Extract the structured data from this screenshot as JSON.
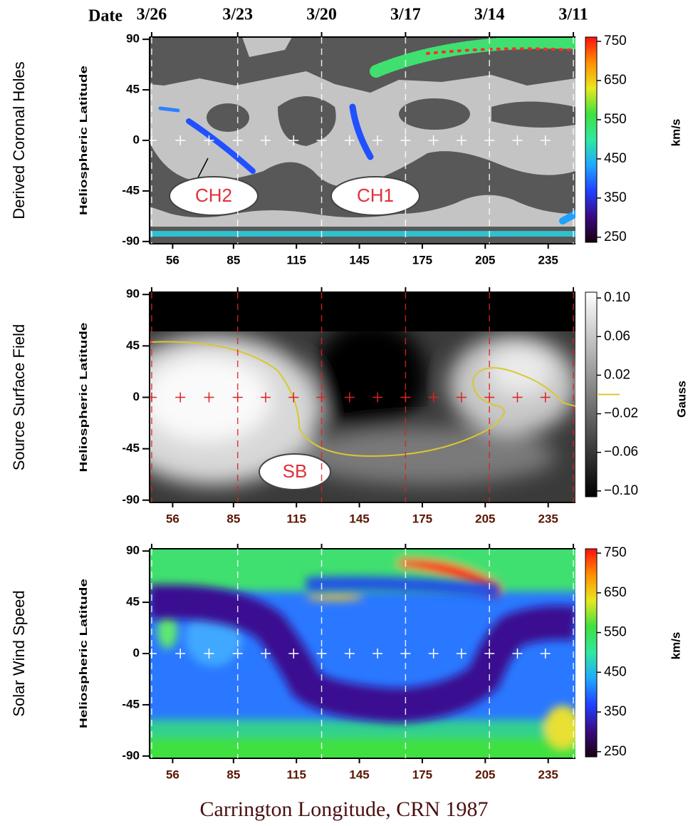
{
  "chart_data": [
    {
      "type": "heatmap",
      "title": "Derived Coronal Holes",
      "ylabel": "Heliospheric Latitude",
      "xlabel": "Date",
      "xlim": [
        45,
        248
      ],
      "xticks": [
        56,
        85,
        115,
        145,
        175,
        205,
        235
      ],
      "x2ticks": [
        {
          "value": 46,
          "label": "3/26"
        },
        {
          "value": 87,
          "label": "3/23"
        },
        {
          "value": 127,
          "label": "3/20"
        },
        {
          "value": 167,
          "label": "3/17"
        },
        {
          "value": 207,
          "label": "3/14"
        },
        {
          "value": 247,
          "label": "3/11"
        }
      ],
      "ylim": [
        -92,
        92
      ],
      "yticks": [
        -90,
        -45,
        0,
        45,
        90
      ],
      "zlim": [
        237,
        761
      ],
      "zticks": [
        250,
        350,
        450,
        550,
        650,
        750
      ],
      "zlabel": "km/s",
      "colors": [
        "#1a0010",
        "#3a0a80",
        "#2040ff",
        "#20a8ff",
        "#30e8a0",
        "#40e040",
        "#e8e820",
        "#ff9000",
        "#ff1010"
      ],
      "grid": true,
      "grid_color": "#ffffff",
      "annotations": [
        "CH2",
        "CH1"
      ]
    },
    {
      "type": "heatmap",
      "title": "Source Surface Field",
      "ylabel": "Heliospheric Latitude",
      "xlim": [
        45,
        248
      ],
      "xticks": [
        56,
        85,
        115,
        145,
        175,
        205,
        235
      ],
      "x2ticks": [
        46,
        87,
        127,
        167,
        207,
        247
      ],
      "ylim": [
        -92,
        92
      ],
      "yticks": [
        -90,
        -45,
        0,
        45,
        90
      ],
      "zlim": [
        -0.106,
        0.106
      ],
      "zticks": [
        {
          "value": 0.1,
          "label": "0.10"
        },
        {
          "value": 0.06,
          "label": "0.06"
        },
        {
          "value": 0.02,
          "label": "0.02"
        },
        {
          "value": -0.02,
          "label": "−0.02"
        },
        {
          "value": -0.06,
          "label": "−0.06"
        },
        {
          "value": -0.1,
          "label": "−0.10"
        }
      ],
      "zlabel": "Gauss",
      "colors": [
        "#000000",
        "#ffffff"
      ],
      "grid": true,
      "grid_color": "#e02020",
      "annotations": [
        "SB"
      ]
    },
    {
      "type": "heatmap",
      "title": "Solar Wind Speed",
      "ylabel": "Heliospheric Latitude",
      "xlabel": "Carrington Longitude, CRN 1987",
      "xlim": [
        45,
        248
      ],
      "xticks": [
        56,
        85,
        115,
        145,
        175,
        205,
        235
      ],
      "x2ticks": [
        46,
        87,
        127,
        167,
        207,
        247
      ],
      "ylim": [
        -92,
        92
      ],
      "yticks": [
        -90,
        -45,
        0,
        45,
        90
      ],
      "zlim": [
        237,
        761
      ],
      "zticks": [
        250,
        350,
        450,
        550,
        650,
        750
      ],
      "zlabel": "km/s",
      "colors": [
        "#1a0010",
        "#3a0a80",
        "#2040ff",
        "#20a8ff",
        "#30e8a0",
        "#40e040",
        "#e8e820",
        "#ff9000",
        "#ff1010"
      ],
      "grid": true,
      "grid_color": "#ffffff"
    }
  ]
}
